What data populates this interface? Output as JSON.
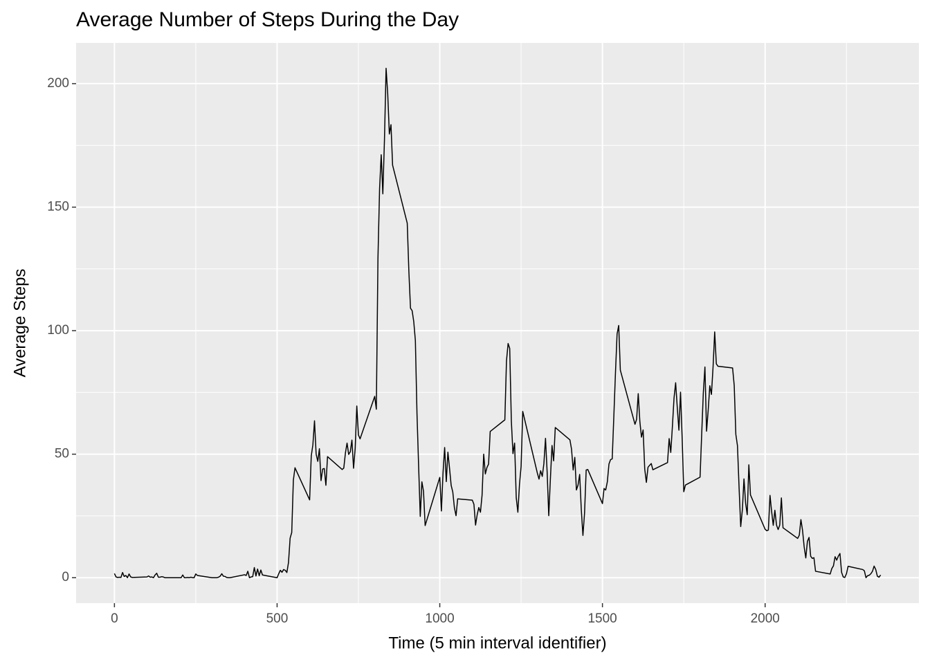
{
  "chart_data": {
    "type": "line",
    "title": "Average Number of Steps During the Day",
    "x_label": "Time (5 min interval identifier)",
    "y_label": "Average Steps",
    "color": "#000000",
    "grid": true,
    "xlim": [
      -117.75,
      2472.75
    ],
    "ylim": [
      -10.3,
      216.5
    ],
    "xticks": [
      0,
      500,
      1000,
      1500,
      2000
    ],
    "yticks": [
      0,
      50,
      100,
      150,
      200
    ],
    "xminor": [
      250,
      750,
      1250,
      1750,
      2250
    ],
    "yminor": [
      25,
      75,
      125,
      175
    ],
    "x": [
      0,
      5,
      10,
      15,
      20,
      25,
      30,
      35,
      40,
      45,
      50,
      55,
      100,
      105,
      110,
      115,
      120,
      125,
      130,
      135,
      140,
      145,
      150,
      155,
      200,
      205,
      210,
      215,
      220,
      225,
      230,
      235,
      240,
      245,
      250,
      255,
      300,
      305,
      310,
      315,
      320,
      325,
      330,
      335,
      340,
      345,
      350,
      355,
      400,
      405,
      410,
      415,
      420,
      425,
      430,
      435,
      440,
      445,
      450,
      455,
      500,
      505,
      510,
      515,
      520,
      525,
      530,
      535,
      540,
      545,
      550,
      555,
      600,
      605,
      610,
      615,
      620,
      625,
      630,
      635,
      640,
      645,
      650,
      655,
      700,
      705,
      710,
      715,
      720,
      725,
      730,
      735,
      740,
      745,
      750,
      755,
      800,
      805,
      810,
      815,
      820,
      825,
      830,
      835,
      840,
      845,
      850,
      855,
      900,
      905,
      910,
      915,
      920,
      925,
      930,
      935,
      940,
      945,
      950,
      955,
      1000,
      1005,
      1010,
      1015,
      1020,
      1025,
      1030,
      1035,
      1040,
      1045,
      1050,
      1055,
      1100,
      1105,
      1110,
      1115,
      1120,
      1125,
      1130,
      1135,
      1140,
      1145,
      1150,
      1155,
      1200,
      1205,
      1210,
      1215,
      1220,
      1225,
      1230,
      1235,
      1240,
      1245,
      1250,
      1255,
      1300,
      1305,
      1310,
      1315,
      1320,
      1325,
      1330,
      1335,
      1340,
      1345,
      1350,
      1355,
      1400,
      1405,
      1410,
      1415,
      1420,
      1425,
      1430,
      1435,
      1440,
      1445,
      1450,
      1455,
      1500,
      1505,
      1510,
      1515,
      1520,
      1525,
      1530,
      1535,
      1540,
      1545,
      1550,
      1555,
      1600,
      1605,
      1610,
      1615,
      1620,
      1625,
      1630,
      1635,
      1640,
      1645,
      1650,
      1655,
      1700,
      1705,
      1710,
      1715,
      1720,
      1725,
      1730,
      1735,
      1740,
      1745,
      1750,
      1755,
      1800,
      1805,
      1810,
      1815,
      1820,
      1825,
      1830,
      1835,
      1840,
      1845,
      1850,
      1855,
      1900,
      1905,
      1910,
      1915,
      1920,
      1925,
      1930,
      1935,
      1940,
      1945,
      1950,
      1955,
      2000,
      2005,
      2010,
      2015,
      2020,
      2025,
      2030,
      2035,
      2040,
      2045,
      2050,
      2055,
      2100,
      2105,
      2110,
      2115,
      2120,
      2125,
      2130,
      2135,
      2140,
      2145,
      2150,
      2155,
      2200,
      2205,
      2210,
      2215,
      2220,
      2225,
      2230,
      2235,
      2240,
      2245,
      2250,
      2255,
      2300,
      2305,
      2310,
      2315,
      2320,
      2325,
      2330,
      2335,
      2340,
      2345,
      2350,
      2355
    ],
    "values": [
      1.7,
      0.3,
      0.1,
      0.2,
      0.1,
      2.1,
      0.5,
      0.9,
      0,
      1.5,
      0.3,
      0.1,
      0.3,
      0.7,
      0.2,
      0.3,
      0,
      1.1,
      1.8,
      0.2,
      0.2,
      0.4,
      0.3,
      0,
      0,
      0,
      1.1,
      0,
      0,
      0.1,
      0,
      0.2,
      0,
      0,
      1.5,
      0.9,
      0,
      0,
      0,
      0,
      0.2,
      0.6,
      1.6,
      0.6,
      0.5,
      0.1,
      0,
      0,
      1.2,
      0.9,
      2.6,
      0,
      0.3,
      0.4,
      4.1,
      0.7,
      3.5,
      0.8,
      3.1,
      1.1,
      0,
      1.6,
      3.0,
      2.2,
      3.3,
      3.0,
      2.1,
      6.1,
      16.0,
      18.3,
      39.5,
      44.5,
      31.5,
      49.3,
      53.8,
      63.5,
      50.0,
      47.1,
      52.2,
      39.3,
      44.0,
      44.2,
      37.4,
      49.0,
      43.8,
      44.4,
      50.5,
      54.5,
      49.9,
      51.0,
      55.7,
      44.3,
      52.3,
      69.5,
      57.8,
      56.2,
      73.4,
      68.2,
      129.4,
      157.5,
      171.2,
      155.4,
      177.3,
      206.2,
      195.9,
      179.6,
      183.4,
      167.0,
      143.5,
      124.0,
      109.1,
      108.1,
      103.7,
      96.0,
      66.2,
      45.2,
      24.8,
      38.8,
      35.0,
      21.1,
      40.6,
      27.0,
      42.4,
      52.7,
      38.9,
      50.8,
      44.3,
      37.4,
      34.7,
      28.3,
      25.1,
      31.9,
      31.4,
      29.7,
      21.3,
      25.5,
      28.4,
      26.5,
      33.4,
      50.0,
      42.0,
      44.6,
      46.0,
      59.2,
      63.9,
      87.7,
      94.8,
      92.8,
      63.4,
      50.2,
      54.5,
      32.4,
      26.5,
      37.7,
      45.1,
      67.3,
      42.3,
      39.9,
      43.3,
      41.0,
      46.2,
      56.4,
      42.8,
      25.1,
      40.0,
      53.5,
      47.3,
      60.8,
      55.8,
      52.0,
      43.6,
      48.7,
      35.5,
      37.5,
      41.8,
      27.5,
      17.1,
      26.1,
      43.6,
      43.8,
      30.0,
      36.1,
      35.5,
      38.8,
      46.0,
      47.8,
      48.1,
      65.3,
      82.9,
      98.7,
      102.1,
      84.0,
      62.1,
      64.1,
      74.5,
      63.2,
      56.9,
      59.8,
      43.9,
      38.6,
      44.7,
      45.5,
      46.2,
      43.7,
      46.6,
      56.3,
      50.7,
      61.2,
      72.7,
      78.9,
      68.9,
      59.7,
      75.1,
      56.5,
      34.8,
      37.5,
      40.7,
      58.0,
      74.7,
      85.3,
      59.3,
      67.8,
      77.7,
      74.2,
      85.3,
      99.5,
      86.6,
      85.6,
      84.9,
      77.8,
      58.0,
      53.4,
      36.3,
      20.7,
      27.4,
      40.0,
      30.2,
      25.5,
      45.7,
      33.5,
      19.6,
      19.0,
      19.3,
      33.3,
      26.8,
      21.2,
      27.3,
      21.3,
      19.5,
      21.3,
      32.3,
      20.2,
      15.9,
      17.2,
      23.5,
      19.2,
      12.5,
      8.0,
      14.7,
      16.3,
      8.7,
      7.8,
      8.1,
      2.6,
      1.5,
      3.7,
      4.8,
      8.5,
      7.1,
      8.7,
      9.8,
      2.2,
      0.3,
      0.1,
      1.6,
      4.6,
      3.3,
      2.8,
      0,
      0.8,
      1.0,
      1.6,
      2.6,
      4.7,
      3.3,
      0.6,
      0.2,
      1.1
    ]
  }
}
